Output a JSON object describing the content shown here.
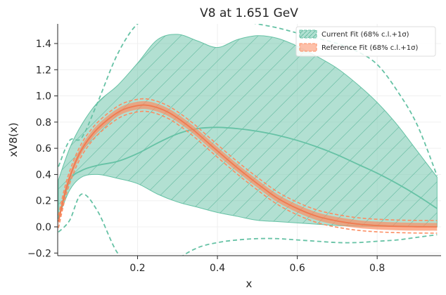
{
  "chart_data": {
    "type": "line",
    "title": "V8 at 1.651 GeV",
    "xlabel": "x",
    "ylabel": "xV8(x)",
    "xlim": [
      0.0,
      0.96
    ],
    "ylim": [
      -0.22,
      1.55
    ],
    "xticks": [
      0.2,
      0.4,
      0.6,
      0.8
    ],
    "yticks": [
      -0.2,
      0.0,
      0.2,
      0.4,
      0.6,
      0.8,
      1.0,
      1.2,
      1.4
    ],
    "xtick_labels": [
      "0.2",
      "0.4",
      "0.6",
      "0.8"
    ],
    "ytick_labels": [
      "−0.2",
      "0.0",
      "0.2",
      "0.4",
      "0.6",
      "0.8",
      "1.0",
      "1.2",
      "1.4"
    ],
    "grid": true,
    "legend_position": "top-right",
    "series": [
      {
        "name": "Current Fit (68% c.l.+1σ)",
        "color": "#66c2a5",
        "x": [
          0.002,
          0.03,
          0.06,
          0.1,
          0.15,
          0.2,
          0.25,
          0.3,
          0.35,
          0.4,
          0.45,
          0.5,
          0.55,
          0.6,
          0.65,
          0.7,
          0.75,
          0.8,
          0.85,
          0.9,
          0.95
        ],
        "central": [
          0.06,
          0.35,
          0.43,
          0.47,
          0.5,
          0.56,
          0.64,
          0.71,
          0.75,
          0.76,
          0.75,
          0.73,
          0.7,
          0.66,
          0.61,
          0.55,
          0.48,
          0.41,
          0.33,
          0.24,
          0.14
        ],
        "band_upper": [
          0.36,
          0.6,
          0.78,
          0.95,
          1.08,
          1.25,
          1.43,
          1.47,
          1.42,
          1.37,
          1.43,
          1.46,
          1.44,
          1.38,
          1.3,
          1.21,
          1.09,
          0.95,
          0.78,
          0.58,
          0.38
        ],
        "band_lower": [
          0.07,
          0.28,
          0.38,
          0.4,
          0.37,
          0.33,
          0.25,
          0.19,
          0.15,
          0.11,
          0.08,
          0.05,
          0.04,
          0.03,
          0.02,
          0.01,
          0.006,
          0.004,
          0.002,
          0.001,
          0.0
        ],
        "outer_upper": [
          0.46,
          0.66,
          0.68,
          0.95,
          1.32,
          1.55,
          1.6,
          1.66,
          1.64,
          1.6,
          1.58,
          1.55,
          1.52,
          1.48,
          1.44,
          1.4,
          1.34,
          1.24,
          1.04,
          0.78,
          0.39
        ],
        "outer_lower": [
          -0.04,
          0.05,
          0.25,
          0.12,
          -0.2,
          -0.32,
          -0.4,
          -0.25,
          -0.16,
          -0.12,
          -0.1,
          -0.09,
          -0.09,
          -0.1,
          -0.11,
          -0.12,
          -0.12,
          -0.11,
          -0.1,
          -0.08,
          -0.06
        ]
      },
      {
        "name": "Reference Fit (68% c.l.+1σ)",
        "color": "#fc8d62",
        "x": [
          0.002,
          0.02,
          0.04,
          0.06,
          0.08,
          0.1,
          0.13,
          0.16,
          0.19,
          0.22,
          0.25,
          0.28,
          0.31,
          0.34,
          0.37,
          0.4,
          0.45,
          0.5,
          0.55,
          0.6,
          0.65,
          0.7,
          0.75,
          0.8,
          0.85,
          0.9,
          0.95
        ],
        "central": [
          0.04,
          0.28,
          0.46,
          0.59,
          0.68,
          0.75,
          0.83,
          0.89,
          0.92,
          0.93,
          0.91,
          0.87,
          0.81,
          0.74,
          0.66,
          0.58,
          0.45,
          0.33,
          0.22,
          0.14,
          0.08,
          0.045,
          0.022,
          0.01,
          0.004,
          0.001,
          0.0
        ],
        "half_width": 0.03
      }
    ]
  }
}
